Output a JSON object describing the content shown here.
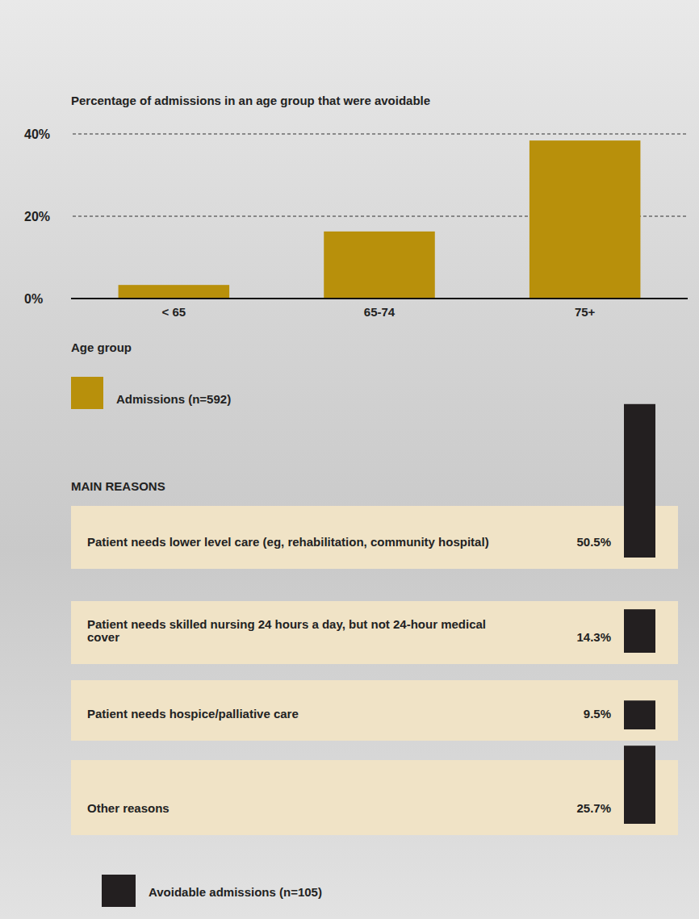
{
  "chart_data": [
    {
      "type": "bar",
      "title": "Percentage of admissions in an age group that were avoidable",
      "x_label": "Age group",
      "categories": [
        "< 65",
        "65-74",
        "75+"
      ],
      "series": [
        {
          "name": "Admissions (n=592)",
          "color": "#b8900b",
          "values": [
            3.3,
            16.3,
            38.4
          ]
        }
      ],
      "ylim": [
        0,
        40
      ],
      "yticks": [
        {
          "value": 0,
          "label": "0%"
        },
        {
          "value": 20,
          "label": "20%"
        },
        {
          "value": 40,
          "label": "40%"
        }
      ],
      "grid": true,
      "legend": "bottom"
    },
    {
      "type": "bar",
      "title": "MAIN REASONS",
      "categories": [
        "Patient needs lower level care (eg, rehabilitation, community hospital)",
        "Patient needs skilled nursing 24 hours a day, but not 24-hour medical cover",
        "Patient needs hospice/palliative care",
        "Other reasons"
      ],
      "series": [
        {
          "name": "Avoidable admissions (n=105)",
          "color": "#231f20",
          "values": [
            50.5,
            14.3,
            9.5,
            25.7
          ],
          "value_labels": [
            "50.5%",
            "14.3%",
            "9.5%",
            "25.7%"
          ]
        }
      ],
      "ylim": [
        0,
        60
      ],
      "data_labels": true,
      "legend": "bottom"
    }
  ]
}
